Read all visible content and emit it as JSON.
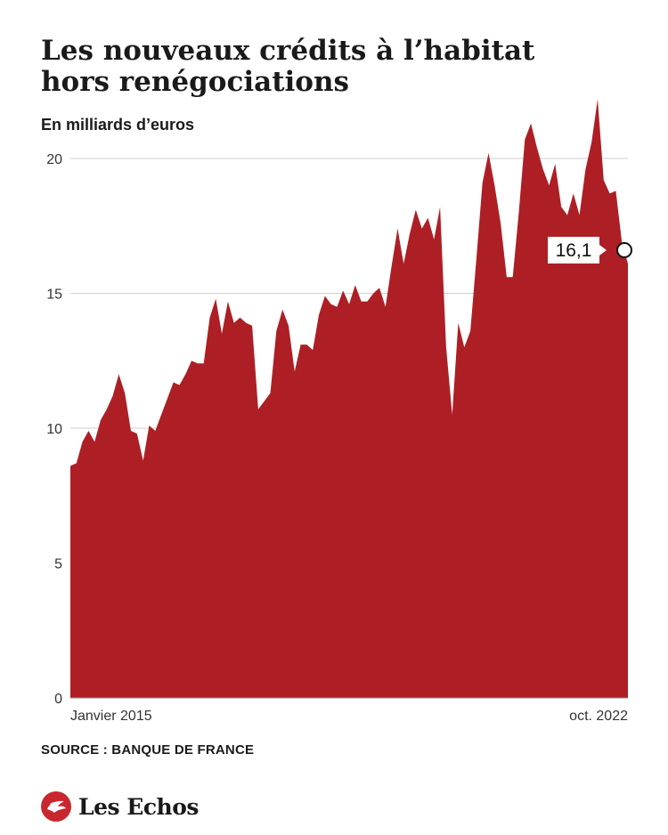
{
  "title_line1": "Les nouveaux crédits à l’habitat",
  "title_line2": "hors renégociations",
  "subtitle": "En milliards d’euros",
  "source": "SOURCE : BANQUE DE FRANCE",
  "brand": "Les Echos",
  "chart_data": {
    "type": "area",
    "ylim": [
      0,
      20
    ],
    "yticks": [
      0,
      5,
      10,
      15,
      20
    ],
    "x_start_label": "Janvier 2015",
    "x_end_label": "oct. 2022",
    "fill_color": "#ad1f25",
    "grid": true,
    "last_value_label": "16,1",
    "series": [
      {
        "values": [
          8.6,
          8.7,
          9.5,
          9.9,
          9.5,
          10.3,
          10.7,
          11.2,
          12.0,
          11.3,
          9.9,
          9.8,
          8.8,
          10.1,
          9.9,
          10.5,
          11.1,
          11.7,
          11.6,
          12.0,
          12.5,
          12.4,
          12.4,
          14.1,
          14.8,
          13.5,
          14.7,
          13.9,
          14.1,
          13.9,
          13.8,
          10.7,
          11.0,
          11.3,
          13.6,
          14.4,
          13.8,
          12.1,
          13.1,
          13.1,
          12.9,
          14.2,
          14.9,
          14.6,
          14.5,
          15.1,
          14.6,
          15.3,
          14.7,
          14.7,
          15.0,
          15.2,
          14.5,
          16.0,
          17.4,
          16.1,
          17.2,
          18.1,
          17.4,
          17.8,
          17.0,
          18.2,
          13.0,
          10.5,
          13.9,
          13.0,
          13.6,
          16.3,
          19.1,
          20.2,
          19.0,
          17.6,
          15.6,
          15.6,
          18.0,
          20.7,
          21.3,
          20.4,
          19.6,
          19.0,
          19.8,
          18.2,
          17.9,
          18.7,
          17.9,
          19.6,
          20.6,
          22.2,
          19.2,
          18.7,
          18.8,
          16.9,
          16.1
        ]
      }
    ]
  }
}
